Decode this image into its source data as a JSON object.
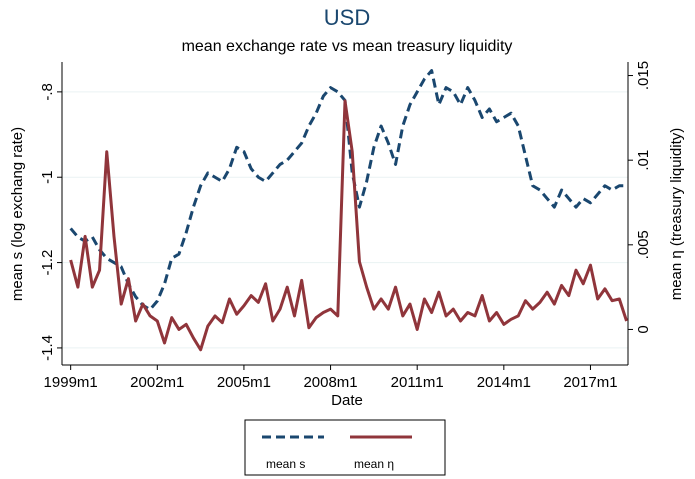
{
  "chart_data": {
    "type": "line",
    "title": "USD",
    "subtitle": "mean exchange rate vs mean treasury liquidity",
    "x_label": "Date",
    "y_label": "mean s (log exchang rate)",
    "y2_label": "mean η (treasury liquidity)",
    "x": [
      1999,
      1999.25,
      1999.5,
      1999.75,
      2000,
      2000.25,
      2000.5,
      2000.75,
      2001,
      2001.25,
      2001.5,
      2001.75,
      2002,
      2002.25,
      2002.5,
      2002.75,
      2003,
      2003.25,
      2003.5,
      2003.75,
      2004,
      2004.25,
      2004.5,
      2004.75,
      2005,
      2005.25,
      2005.5,
      2005.75,
      2006,
      2006.25,
      2006.5,
      2006.75,
      2007,
      2007.25,
      2007.5,
      2007.75,
      2008,
      2008.25,
      2008.5,
      2008.75,
      2009,
      2009.25,
      2009.5,
      2009.75,
      2010,
      2010.25,
      2010.5,
      2010.75,
      2011,
      2011.25,
      2011.5,
      2011.75,
      2012,
      2012.25,
      2012.5,
      2012.75,
      2013,
      2013.25,
      2013.5,
      2013.75,
      2014,
      2014.25,
      2014.5,
      2014.75,
      2015,
      2015.25,
      2015.5,
      2015.75,
      2016,
      2016.25,
      2016.5,
      2016.75,
      2017,
      2017.25,
      2017.5,
      2017.75,
      2018,
      2018.25
    ],
    "series": [
      {
        "name": "mean s",
        "color": "#1a476f",
        "style": "dash",
        "values": [
          -1.12,
          -1.14,
          -1.15,
          -1.14,
          -1.17,
          -1.19,
          -1.2,
          -1.21,
          -1.25,
          -1.28,
          -1.3,
          -1.31,
          -1.29,
          -1.25,
          -1.19,
          -1.18,
          -1.13,
          -1.07,
          -1.02,
          -0.99,
          -1.0,
          -1.01,
          -0.98,
          -0.93,
          -0.94,
          -0.98,
          -1.0,
          -1.01,
          -0.99,
          -0.97,
          -0.96,
          -0.94,
          -0.92,
          -0.88,
          -0.85,
          -0.81,
          -0.79,
          -0.8,
          -0.82,
          -0.99,
          -1.07,
          -1.01,
          -0.93,
          -0.88,
          -0.92,
          -0.97,
          -0.88,
          -0.83,
          -0.8,
          -0.77,
          -0.75,
          -0.83,
          -0.79,
          -0.8,
          -0.83,
          -0.79,
          -0.82,
          -0.86,
          -0.84,
          -0.87,
          -0.86,
          -0.85,
          -0.88,
          -0.95,
          -1.02,
          -1.03,
          -1.05,
          -1.07,
          -1.03,
          -1.05,
          -1.07,
          -1.05,
          -1.06,
          -1.04,
          -1.02,
          -1.03,
          -1.02,
          -1.02
        ]
      },
      {
        "name": "mean η",
        "color": "#90353b",
        "style": "solid",
        "axis": "y2",
        "values": [
          0.0041,
          0.0025,
          0.0055,
          0.0025,
          0.0035,
          0.0105,
          0.0055,
          0.0015,
          0.003,
          0.0005,
          0.0015,
          0.0008,
          0.0005,
          -0.0008,
          0.0007,
          0.0,
          0.0003,
          -0.0005,
          -0.0012,
          0.0002,
          0.0008,
          0.0004,
          0.0018,
          0.0009,
          0.0014,
          0.002,
          0.0016,
          0.0027,
          0.0005,
          0.0012,
          0.0025,
          0.0008,
          0.0029,
          0.0001,
          0.0007,
          0.001,
          0.0012,
          0.0008,
          0.0135,
          0.0105,
          0.004,
          0.0025,
          0.0012,
          0.0018,
          0.0012,
          0.0025,
          0.0008,
          0.0015,
          0.0,
          0.0018,
          0.001,
          0.0022,
          0.0008,
          0.0012,
          0.0005,
          0.001,
          0.0008,
          0.002,
          0.0005,
          0.001,
          0.0003,
          0.0006,
          0.0008,
          0.0017,
          0.0012,
          0.0016,
          0.0022,
          0.0015,
          0.0026,
          0.002,
          0.0035,
          0.0027,
          0.0038,
          0.0018,
          0.0024,
          0.0017,
          0.0018,
          0.0005
        ]
      }
    ],
    "xlim": [
      1998.7,
      2018.3
    ],
    "xticks": [
      {
        "value": 1999,
        "label": "1999m1"
      },
      {
        "value": 2002,
        "label": "2002m1"
      },
      {
        "value": 2005,
        "label": "2005m1"
      },
      {
        "value": 2008,
        "label": "2008m1"
      },
      {
        "value": 2011,
        "label": "2011m1"
      },
      {
        "value": 2014,
        "label": "2014m1"
      },
      {
        "value": 2017,
        "label": "2017m1"
      }
    ],
    "ylim": [
      -1.44,
      -0.73
    ],
    "yticks": [
      {
        "value": -1.4,
        "label": "-1.4"
      },
      {
        "value": -1.2,
        "label": "-1.2"
      },
      {
        "value": -1,
        "label": "-1"
      },
      {
        "value": -0.8,
        "label": "-.8"
      }
    ],
    "y2lim": [
      -0.0021,
      0.0158
    ],
    "y2ticks": [
      0,
      {
        "value": 0.005,
        "label": ".005"
      },
      {
        "value": 0.01,
        "label": ".01"
      },
      {
        "value": 0.015,
        "label": ".015"
      }
    ],
    "grid": true
  }
}
